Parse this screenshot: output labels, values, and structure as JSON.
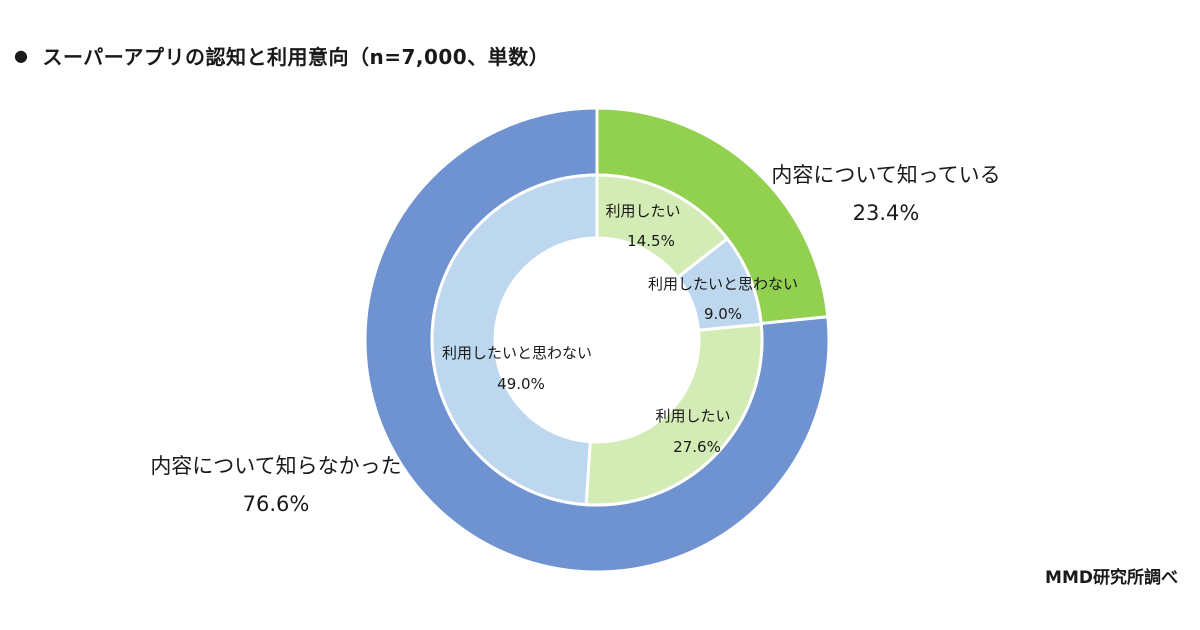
{
  "title": "スーパーアプリの認知と利用意向（n=7,000、単数）",
  "bullet": "●",
  "source": "MMD研究所調べ",
  "chart_data": {
    "type": "pie",
    "subtype": "nested-donut",
    "title": "スーパーアプリの認知と利用意向（n=7,000、単数）",
    "outer_ring": [
      {
        "label": "内容について知っている",
        "value": 23.4,
        "display": "23.4%",
        "color": "#92d050"
      },
      {
        "label": "内容について知らなかった",
        "value": 76.6,
        "display": "76.6%",
        "color": "#6f92d0"
      }
    ],
    "inner_ring": [
      {
        "label": "利用したい",
        "value": 14.5,
        "display": "14.5%",
        "parent": "内容について知っている",
        "color": "#d3ebb4"
      },
      {
        "label": "利用したいと思わない",
        "value": 9.0,
        "display": "9.0%",
        "parent": "内容について知っている",
        "color": "#bdd7ee"
      },
      {
        "label": "利用したい",
        "value": 27.6,
        "display": "27.6%",
        "parent": "内容について知らなかった",
        "color": "#d3ebb4"
      },
      {
        "label": "利用したいと思わない",
        "value": 49.0,
        "display": "49.0%",
        "parent": "内容について知らなかった",
        "color": "#bdd7ee"
      }
    ],
    "legend": "none"
  }
}
